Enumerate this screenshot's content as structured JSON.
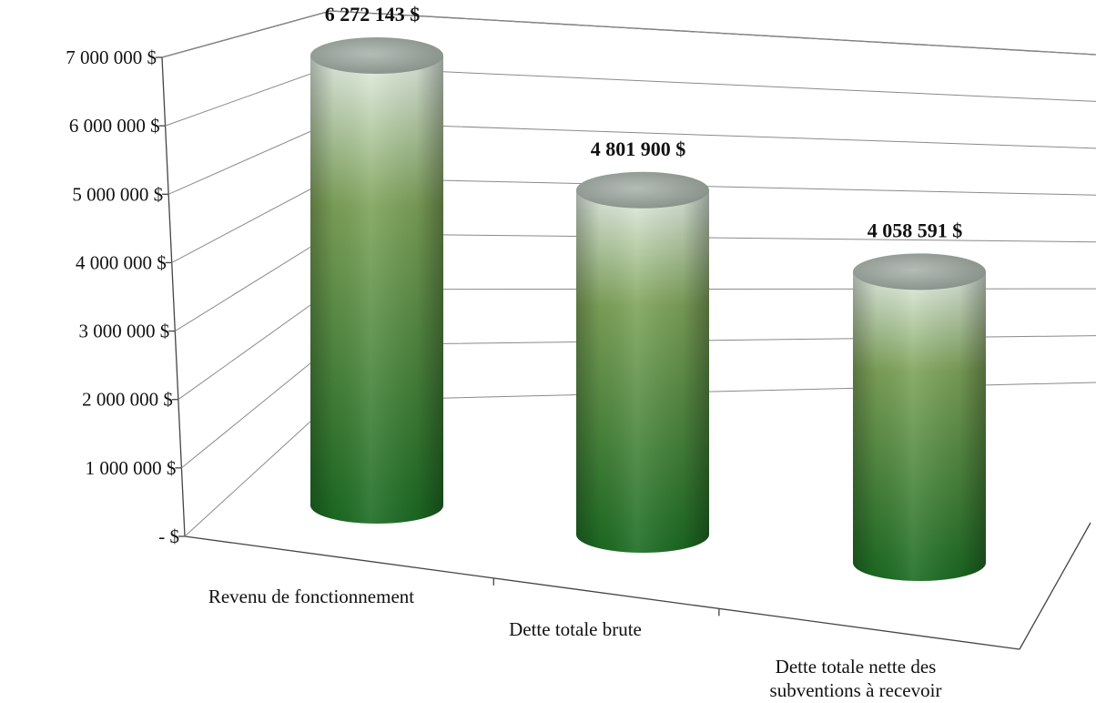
{
  "chart_data": {
    "type": "bar",
    "style": "3d-cylinder",
    "categories": [
      "Revenu de fonctionnement",
      "Dette totale brute",
      "Dette totale nette des subventions à recevoir"
    ],
    "category_lines": [
      [
        "Revenu de fonctionnement"
      ],
      [
        "Dette totale brute"
      ],
      [
        "Dette totale nette des",
        "subventions à recevoir"
      ]
    ],
    "values": [
      6272143,
      4801900,
      4058591
    ],
    "data_labels": [
      "6 272 143  $",
      "4 801 900  $",
      "4 058 591  $"
    ],
    "ylim": [
      0,
      7000000
    ],
    "yticks": [
      0,
      1000000,
      2000000,
      3000000,
      4000000,
      5000000,
      6000000,
      7000000
    ],
    "ytick_labels": [
      "-  $",
      "1 000 000  $",
      "2 000 000  $",
      "3 000 000  $",
      "4 000 000  $",
      "5 000 000  $",
      "6 000 000  $",
      "7 000 000  $"
    ],
    "title": "",
    "xlabel": "",
    "ylabel": "",
    "grid": true,
    "legend": "none",
    "colors": {
      "bar_top": "#e6f0e8",
      "bar_mid": "#7ea35a",
      "bar_bottom": "#1b6b22",
      "cap": "#9aa49c"
    }
  }
}
